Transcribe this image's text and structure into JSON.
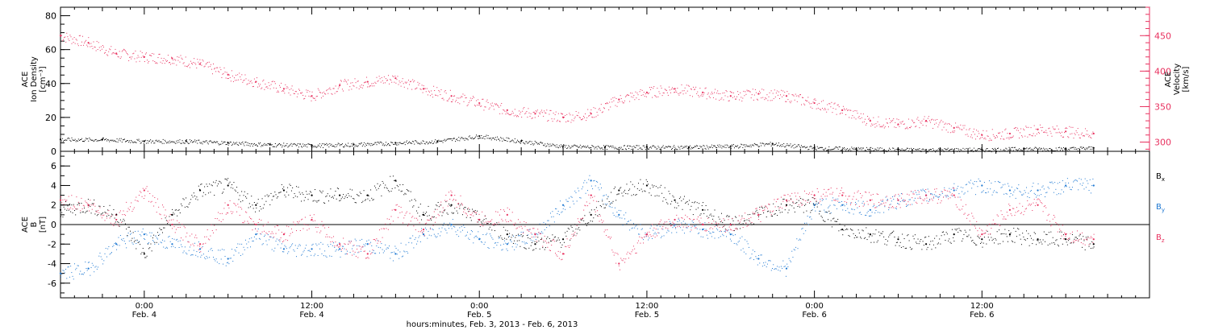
{
  "chart_data": [
    {
      "type": "scatter",
      "ylabel_left": [
        "ACE",
        "Ion Density",
        "[cm⁻³]"
      ],
      "ylabel_right": [
        "ACE",
        "Velocity",
        "[km/s]"
      ],
      "ylim_left": [
        0,
        85
      ],
      "yticks_left": [
        0,
        20,
        40,
        60,
        80
      ],
      "ylim_right": [
        287,
        490
      ],
      "yticks_right": [
        300,
        350,
        400,
        450
      ],
      "colors": {
        "density": "#000000",
        "velocity": "#e8315f"
      },
      "series": [
        {
          "key": "velocity",
          "axis": "right",
          "x": [
            -6,
            -4,
            -2,
            0,
            2,
            4,
            6,
            8,
            10,
            12,
            14,
            16,
            18,
            20,
            22,
            24,
            26,
            28,
            30,
            32,
            34,
            36,
            38,
            40,
            42,
            44,
            46,
            48,
            50,
            52,
            54,
            56,
            58,
            60,
            62,
            64,
            66,
            68
          ],
          "y": [
            450,
            440,
            425,
            420,
            418,
            410,
            395,
            385,
            375,
            365,
            380,
            385,
            390,
            375,
            365,
            355,
            345,
            340,
            335,
            340,
            360,
            370,
            375,
            370,
            365,
            368,
            365,
            355,
            345,
            330,
            325,
            330,
            320,
            310,
            312,
            318,
            315,
            312
          ]
        },
        {
          "key": "density",
          "axis": "left",
          "x": [
            -6,
            -3,
            0,
            3,
            6,
            9,
            12,
            15,
            18,
            21,
            24,
            27,
            30,
            33,
            36,
            39,
            42,
            45,
            48,
            51,
            54,
            57,
            60,
            63,
            66,
            68
          ],
          "y": [
            7,
            7,
            6,
            6,
            5,
            4,
            3.5,
            4,
            5,
            6,
            9,
            6,
            3,
            2.5,
            2.5,
            2.5,
            3,
            4.5,
            2,
            1.5,
            1,
            1,
            1,
            1.5,
            1.5,
            2
          ]
        }
      ]
    },
    {
      "type": "scatter",
      "ylabel": [
        "ACE",
        "B",
        "[nT]"
      ],
      "ylim": [
        -7.5,
        7.5
      ],
      "yticks": [
        -6,
        -4,
        -2,
        0,
        2,
        4,
        6
      ],
      "zero_line": true,
      "colors": {
        "Bx": "#000000",
        "By": "#1e78d2",
        "Bz": "#e8315f"
      },
      "legend": [
        {
          "label": "Bx",
          "color": "#000000"
        },
        {
          "label": "By",
          "color": "#1e78d2"
        },
        {
          "label": "Bz",
          "color": "#e8315f"
        }
      ],
      "series": [
        {
          "key": "Bx",
          "x": [
            -6,
            -4,
            -2,
            0,
            2,
            4,
            6,
            8,
            10,
            12,
            14,
            16,
            18,
            20,
            22,
            24,
            26,
            28,
            30,
            32,
            34,
            36,
            38,
            40,
            42,
            44,
            46,
            48,
            50,
            52,
            54,
            56,
            58,
            60,
            62,
            64,
            66,
            68
          ],
          "y": [
            1.5,
            2.0,
            1.0,
            -3.0,
            1.0,
            3.5,
            4.0,
            2.0,
            3.5,
            3.0,
            3.0,
            3.0,
            4.5,
            1.0,
            2.0,
            0.5,
            -1.0,
            -2.0,
            -1.5,
            1.0,
            3.5,
            4.0,
            2.5,
            1.5,
            0.0,
            1.0,
            2.0,
            2.0,
            -0.5,
            -1.0,
            -1.5,
            -2.0,
            -1.0,
            -1.5,
            -1.0,
            -1.5,
            -1.5,
            -2.0
          ]
        },
        {
          "key": "By",
          "x": [
            -6,
            -4,
            -2,
            0,
            2,
            4,
            6,
            8,
            10,
            12,
            14,
            16,
            18,
            20,
            22,
            24,
            26,
            28,
            30,
            32,
            34,
            36,
            38,
            40,
            42,
            44,
            46,
            48,
            50,
            52,
            54,
            56,
            58,
            60,
            62,
            64,
            66,
            68
          ],
          "y": [
            -5.0,
            -4.5,
            -2.0,
            -1.0,
            -2.0,
            -2.5,
            -3.5,
            -1.0,
            -2.5,
            -2.5,
            -2.5,
            -2.0,
            -3.0,
            -1.0,
            0.0,
            -1.5,
            -2.0,
            -1.0,
            2.0,
            4.5,
            1.0,
            -1.0,
            0.0,
            -0.5,
            -1.0,
            -3.5,
            -4.5,
            2.0,
            2.0,
            1.5,
            2.5,
            3.0,
            3.5,
            4.0,
            3.5,
            3.5,
            4.0,
            4.0
          ]
        },
        {
          "key": "Bz",
          "x": [
            -6,
            -4,
            -2,
            0,
            2,
            4,
            6,
            8,
            10,
            12,
            14,
            16,
            18,
            20,
            22,
            24,
            26,
            28,
            30,
            32,
            34,
            36,
            38,
            40,
            42,
            44,
            46,
            48,
            50,
            52,
            54,
            56,
            58,
            60,
            62,
            64,
            66,
            68
          ],
          "y": [
            2.5,
            2.0,
            0.5,
            3.5,
            0.0,
            -2.0,
            2.0,
            0.0,
            -1.0,
            0.5,
            -2.0,
            -3.0,
            1.5,
            -0.5,
            3.0,
            0.5,
            1.0,
            -1.0,
            -3.0,
            3.0,
            -4.0,
            -1.0,
            0.5,
            0.0,
            0.0,
            1.0,
            2.5,
            3.0,
            3.0,
            2.5,
            2.5,
            3.0,
            3.0,
            -1.0,
            1.5,
            2.0,
            -1.0,
            -1.5
          ]
        }
      ]
    }
  ],
  "x_axis": {
    "xlim": [
      -6,
      72
    ],
    "ticks": [
      {
        "x": 0,
        "time": "0:00",
        "date": "Feb. 4"
      },
      {
        "x": 12,
        "time": "12:00",
        "date": "Feb. 4"
      },
      {
        "x": 24,
        "time": "0:00",
        "date": "Feb. 5"
      },
      {
        "x": 36,
        "time": "12:00",
        "date": "Feb. 5"
      },
      {
        "x": 48,
        "time": "0:00",
        "date": "Feb. 6"
      },
      {
        "x": 60,
        "time": "12:00",
        "date": "Feb. 6"
      }
    ],
    "label": "hours:minutes, Feb.  3, 2013 - Feb.  6, 2013"
  }
}
